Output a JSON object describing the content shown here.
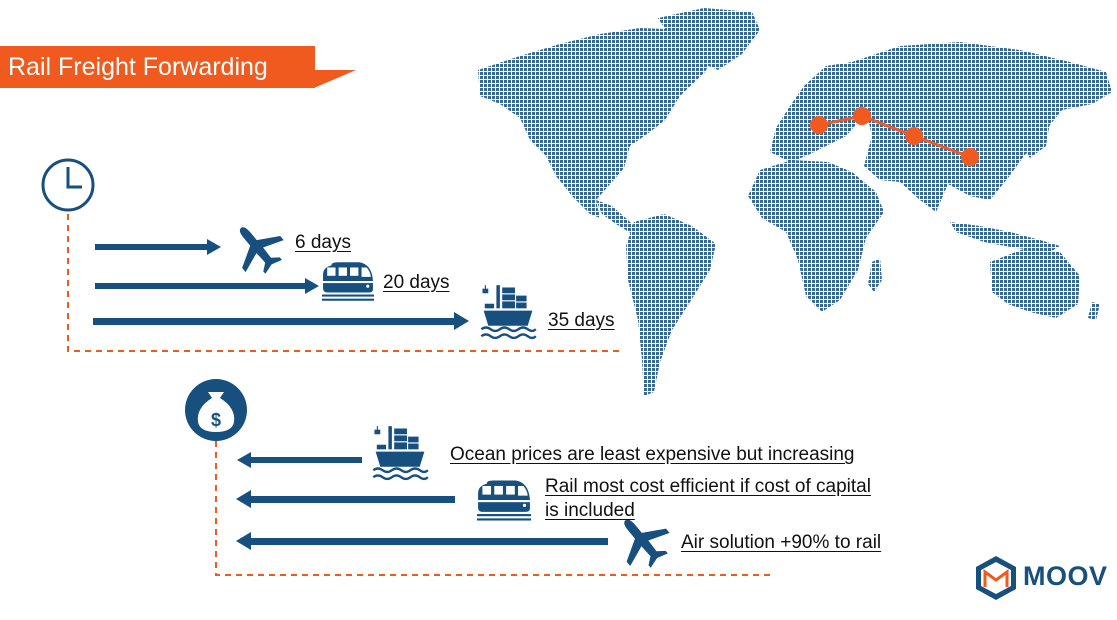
{
  "title": "Rail Freight Forwarding",
  "colors": {
    "accent": "#f15a1f",
    "navy": "#174f7f",
    "map": "#3a6a94",
    "arrow": "#174f7f"
  },
  "transit_time": {
    "icon": "clock-icon",
    "rows": [
      {
        "mode": "air",
        "icon": "airplane-icon",
        "label": "6 days"
      },
      {
        "mode": "rail",
        "icon": "train-icon",
        "label": "20 days"
      },
      {
        "mode": "ocean",
        "icon": "cargo-ship-icon",
        "label": "35 days"
      }
    ]
  },
  "cost": {
    "icon": "money-bag-icon",
    "rows": [
      {
        "mode": "ocean",
        "icon": "cargo-ship-icon",
        "label": "Ocean prices are least expensive but increasing"
      },
      {
        "mode": "rail",
        "icon": "train-icon",
        "label_line1": "Rail most cost efficient if cost of capital",
        "label_line2": "is included"
      },
      {
        "mode": "air",
        "icon": "airplane-icon",
        "label": "Air solution +90% to rail"
      }
    ]
  },
  "map": {
    "icon": "world-map-icon",
    "route": "rail route Europe to China"
  },
  "brand": {
    "name": "MOOV",
    "icon": "moov-logo-icon"
  }
}
